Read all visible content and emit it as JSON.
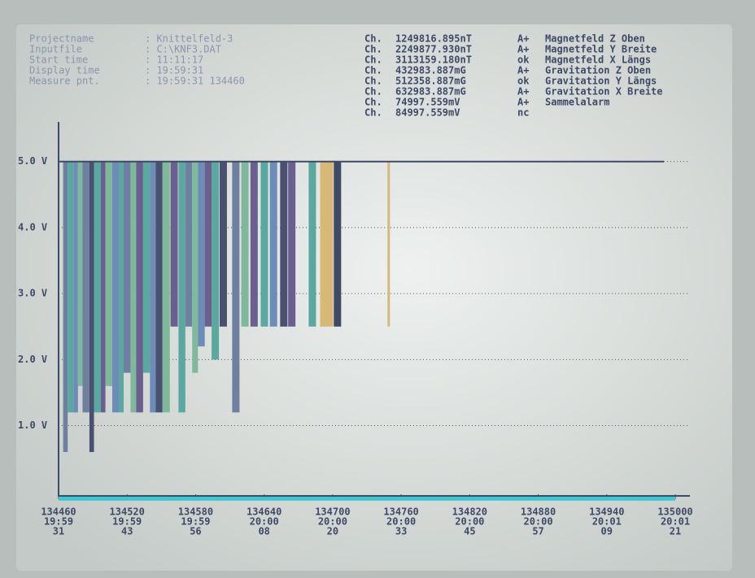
{
  "header": {
    "fields": [
      {
        "label": "Projectname",
        "value": ": Knittelfeld-3"
      },
      {
        "label": "Inputfile",
        "value": ": C:\\KNF3.DAT"
      },
      {
        "label": "Start time",
        "value": ": 11:11:17"
      },
      {
        "label": "Display time",
        "value": ": 19:59:31"
      },
      {
        "label": "Measure pnt.",
        "value": ": 19:59:31 134460"
      }
    ]
  },
  "channels": [
    {
      "prefix": "Ch.",
      "reading": "1249816.895nT",
      "status": "A+",
      "name": "Magnetfeld Z Oben"
    },
    {
      "prefix": "Ch.",
      "reading": "2249877.930nT",
      "status": "A+",
      "name": "Magnetfeld Y Breite"
    },
    {
      "prefix": "Ch.",
      "reading": "3113159.180nT",
      "status": "ok",
      "name": "Magnetfeld X Längs"
    },
    {
      "prefix": "Ch.",
      "reading": "432983.887mG",
      "status": "A+",
      "name": "Gravitation Z Oben"
    },
    {
      "prefix": "Ch.",
      "reading": "512358.887mG",
      "status": "ok",
      "name": "Gravitation Y Längs"
    },
    {
      "prefix": "Ch.",
      "reading": "632983.887mG",
      "status": "A+",
      "name": "Gravitation X Breite"
    },
    {
      "prefix": "Ch.",
      "reading": "74997.559mV",
      "status": "A+",
      "name": "Sammelalarm"
    },
    {
      "prefix": "Ch.",
      "reading": "84997.559mV",
      "status": "nc",
      "name": ""
    }
  ],
  "chart_data": {
    "type": "spikes",
    "xlim": [
      134460,
      135000
    ],
    "ylim": [
      -0.2,
      5.6
    ],
    "yticks": [
      {
        "value": 1,
        "label": "1.0 V"
      },
      {
        "value": 2,
        "label": "2.0 V"
      },
      {
        "value": 3,
        "label": "3.0 V"
      },
      {
        "value": 4,
        "label": "4.0 V"
      },
      {
        "value": 5,
        "label": "5.0 V"
      }
    ],
    "xticks": [
      {
        "value": 134460,
        "label": [
          "134460",
          "19:59",
          "31"
        ]
      },
      {
        "value": 134520,
        "label": [
          "134520",
          "19:59",
          "43"
        ]
      },
      {
        "value": 134580,
        "label": [
          "134580",
          "19:59",
          "56"
        ]
      },
      {
        "value": 134640,
        "label": [
          "134640",
          "20:00",
          "08"
        ]
      },
      {
        "value": 134700,
        "label": [
          "134700",
          "20:00",
          "20"
        ]
      },
      {
        "value": 134760,
        "label": [
          "134760",
          "20:00",
          "33"
        ]
      },
      {
        "value": 134820,
        "label": [
          "134820",
          "20:00",
          "45"
        ]
      },
      {
        "value": 134880,
        "label": [
          "134880",
          "20:00",
          "57"
        ]
      },
      {
        "value": 134940,
        "label": [
          "134940",
          "20:01",
          "09"
        ]
      },
      {
        "value": 135000,
        "label": [
          "135000",
          "20:01",
          "21"
        ]
      }
    ],
    "grid": true,
    "x": [
      134464,
      134468,
      134473,
      134477,
      134481,
      134487,
      134491,
      134497,
      134501,
      134507,
      134513,
      134517,
      134523,
      134528,
      134534,
      134540,
      134545,
      134551,
      134558,
      134565,
      134571,
      134577,
      134582,
      134588,
      134594,
      134601,
      134612,
      134620,
      134628,
      134637,
      134645,
      134654,
      134661,
      134679,
      134689,
      134694,
      134701,
      134748
    ],
    "low": [
      0.6,
      1.2,
      1.2,
      1.6,
      1.2,
      0.6,
      1.2,
      1.2,
      1.6,
      1.2,
      1.2,
      1.8,
      1.2,
      1.2,
      1.8,
      1.2,
      1.2,
      1.2,
      2.5,
      1.2,
      2.5,
      1.8,
      2.2,
      2.5,
      2.0,
      2.5,
      1.2,
      2.5,
      2.5,
      2.5,
      2.5,
      2.5,
      2.5,
      2.5,
      2.5,
      2.5,
      2.5,
      2.5
    ],
    "high": [
      5,
      5,
      5,
      5,
      5,
      5,
      5,
      5,
      5,
      5,
      5,
      5,
      5,
      5,
      5,
      5,
      5,
      5,
      5,
      5,
      5,
      5,
      5,
      5,
      5,
      5,
      5,
      5,
      5,
      5,
      5,
      5,
      5,
      5,
      5,
      5,
      5,
      5
    ],
    "colors": [
      "#6f7fa0",
      "#5aa8a0",
      "#6e8cb8",
      "#7fb89a",
      "#6f7fa0",
      "#4a5070",
      "#5aa8a0",
      "#6a5f8f",
      "#7fb89a",
      "#6e8cb8",
      "#5aa8a0",
      "#6f7fa0",
      "#7fb89a",
      "#6a5f8f",
      "#5aa8a0",
      "#6e8cb8",
      "#4a5070",
      "#7fb89a",
      "#6a5f8f",
      "#5aa8a0",
      "#6f7fa0",
      "#7fb89a",
      "#6e8cb8",
      "#6a5f8f",
      "#5aa8a0",
      "#4a5070",
      "#6f7fa0",
      "#7fb89a",
      "#6a5f8f",
      "#5aa8a0",
      "#6e8cb8",
      "#4a5070",
      "#6a5f8f",
      "#5aa8a0",
      "#d8b878",
      "#d8b878",
      "#3e4a66",
      "#d8b878"
    ],
    "lines": [
      {
        "color": "#3e4a66",
        "x": [
          134460,
          134990
        ],
        "values": [
          5,
          5
        ]
      },
      {
        "color": "#3cc8d0",
        "x": [
          134460,
          135000
        ],
        "values": [
          -0.1,
          -0.1
        ]
      }
    ]
  }
}
